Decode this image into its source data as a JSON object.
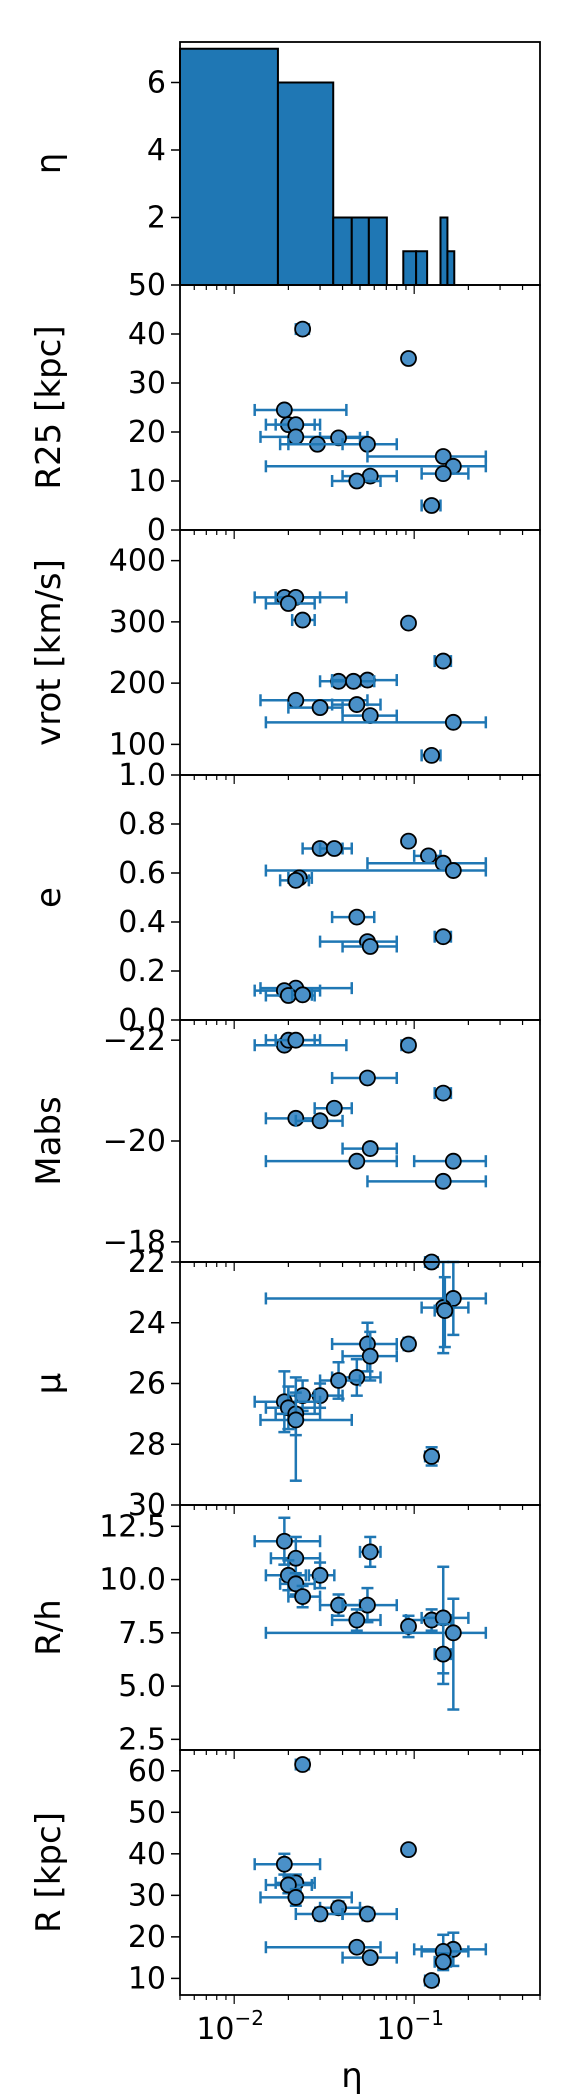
{
  "chart_data": [
    {
      "type": "bar",
      "panel": "histogram",
      "ylabel": "η",
      "ylim": [
        0,
        7.2
      ],
      "xscale": "log",
      "xlim": [
        0.005,
        0.5
      ],
      "bins": [
        {
          "x0": 0.005,
          "x1": 0.0175,
          "count": 7
        },
        {
          "x0": 0.0175,
          "x1": 0.0355,
          "count": 6
        },
        {
          "x0": 0.0355,
          "x1": 0.045,
          "count": 2
        },
        {
          "x0": 0.045,
          "x1": 0.056,
          "count": 2
        },
        {
          "x0": 0.056,
          "x1": 0.0705,
          "count": 2
        },
        {
          "x0": 0.087,
          "x1": 0.1025,
          "count": 1
        },
        {
          "x0": 0.1025,
          "x1": 0.118,
          "count": 1
        },
        {
          "x0": 0.14,
          "x1": 0.153,
          "count": 2
        },
        {
          "x0": 0.153,
          "x1": 0.167,
          "count": 1
        }
      ],
      "yticks": [
        2,
        4,
        6
      ],
      "ytick_labels": [
        "2",
        "4",
        "6"
      ],
      "color": "#1f77b4"
    },
    {
      "type": "scatter",
      "ylabel": "R25 [kpc]",
      "ylim": [
        0,
        50
      ],
      "yticks": [
        0,
        10,
        20,
        30,
        40,
        50
      ],
      "ytick_labels": [
        "0",
        "10",
        "20",
        "30",
        "40",
        "50"
      ],
      "points": [
        {
          "x": 0.024,
          "y": 41,
          "xlo": 0.022,
          "xhi": 0.026
        },
        {
          "x": 0.093,
          "y": 35,
          "xlo": 0.088,
          "xhi": 0.098
        },
        {
          "x": 0.019,
          "y": 24.5,
          "xlo": 0.013,
          "xhi": 0.042
        },
        {
          "x": 0.02,
          "y": 21.5,
          "xlo": 0.015,
          "xhi": 0.03
        },
        {
          "x": 0.022,
          "y": 21.5,
          "xlo": 0.017,
          "xhi": 0.028
        },
        {
          "x": 0.022,
          "y": 19,
          "xlo": 0.014,
          "xhi": 0.055
        },
        {
          "x": 0.038,
          "y": 18.8,
          "xlo": 0.03,
          "xhi": 0.05
        },
        {
          "x": 0.029,
          "y": 17.5,
          "xlo": 0.02,
          "xhi": 0.04
        },
        {
          "x": 0.055,
          "y": 17.5,
          "xlo": 0.018,
          "xhi": 0.08
        },
        {
          "x": 0.145,
          "y": 15,
          "xlo": 0.055,
          "xhi": 0.25
        },
        {
          "x": 0.165,
          "y": 13,
          "xlo": 0.015,
          "xhi": 0.25
        },
        {
          "x": 0.145,
          "y": 11.5,
          "xlo": 0.11,
          "xhi": 0.2
        },
        {
          "x": 0.057,
          "y": 11,
          "xlo": 0.04,
          "xhi": 0.08
        },
        {
          "x": 0.048,
          "y": 10,
          "xlo": 0.035,
          "xhi": 0.065
        },
        {
          "x": 0.125,
          "y": 5,
          "xlo": 0.11,
          "xhi": 0.14
        }
      ]
    },
    {
      "type": "scatter",
      "ylabel": "vrot [km/s]",
      "ylim": [
        50,
        450
      ],
      "yticks": [
        100,
        200,
        300,
        400
      ],
      "ytick_labels": [
        "100",
        "200",
        "300",
        "400"
      ],
      "points": [
        {
          "x": 0.019,
          "y": 340,
          "xlo": 0.013,
          "xhi": 0.042
        },
        {
          "x": 0.022,
          "y": 340,
          "xlo": 0.017,
          "xhi": 0.03
        },
        {
          "x": 0.02,
          "y": 330,
          "xlo": 0.015,
          "xhi": 0.028
        },
        {
          "x": 0.024,
          "y": 303,
          "xlo": 0.021,
          "xhi": 0.028
        },
        {
          "x": 0.093,
          "y": 298,
          "xlo": 0.088,
          "xhi": 0.098
        },
        {
          "x": 0.145,
          "y": 236,
          "xlo": 0.13,
          "xhi": 0.16
        },
        {
          "x": 0.038,
          "y": 203,
          "xlo": 0.03,
          "xhi": 0.05
        },
        {
          "x": 0.055,
          "y": 205,
          "xlo": 0.035,
          "xhi": 0.08
        },
        {
          "x": 0.046,
          "y": 203,
          "xlo": 0.035,
          "xhi": 0.06
        },
        {
          "x": 0.022,
          "y": 172,
          "xlo": 0.014,
          "xhi": 0.055
        },
        {
          "x": 0.048,
          "y": 165,
          "xlo": 0.035,
          "xhi": 0.065
        },
        {
          "x": 0.03,
          "y": 160,
          "xlo": 0.02,
          "xhi": 0.04
        },
        {
          "x": 0.057,
          "y": 147,
          "xlo": 0.04,
          "xhi": 0.08
        },
        {
          "x": 0.165,
          "y": 136,
          "xlo": 0.015,
          "xhi": 0.25
        },
        {
          "x": 0.125,
          "y": 82,
          "xlo": 0.11,
          "xhi": 0.14
        }
      ]
    },
    {
      "type": "scatter",
      "ylabel": "e",
      "ylim": [
        0,
        1.0
      ],
      "yticks": [
        0.0,
        0.2,
        0.4,
        0.6,
        0.8,
        1.0
      ],
      "ytick_labels": [
        "0.0",
        "0.2",
        "0.4",
        "0.6",
        "0.8",
        "1.0"
      ],
      "points": [
        {
          "x": 0.093,
          "y": 0.73,
          "xlo": 0.088,
          "xhi": 0.098
        },
        {
          "x": 0.03,
          "y": 0.7,
          "xlo": 0.024,
          "xhi": 0.04
        },
        {
          "x": 0.036,
          "y": 0.7,
          "xlo": 0.03,
          "xhi": 0.045
        },
        {
          "x": 0.12,
          "y": 0.67,
          "xlo": 0.1,
          "xhi": 0.14
        },
        {
          "x": 0.145,
          "y": 0.64,
          "xlo": 0.055,
          "xhi": 0.25
        },
        {
          "x": 0.165,
          "y": 0.61,
          "xlo": 0.015,
          "xhi": 0.25
        },
        {
          "x": 0.023,
          "y": 0.58,
          "xlo": 0.02,
          "xhi": 0.027
        },
        {
          "x": 0.022,
          "y": 0.57,
          "xlo": 0.018,
          "xhi": 0.026
        },
        {
          "x": 0.048,
          "y": 0.42,
          "xlo": 0.035,
          "xhi": 0.06
        },
        {
          "x": 0.145,
          "y": 0.34,
          "xlo": 0.13,
          "xhi": 0.16
        },
        {
          "x": 0.055,
          "y": 0.32,
          "xlo": 0.03,
          "xhi": 0.08
        },
        {
          "x": 0.057,
          "y": 0.3,
          "xlo": 0.04,
          "xhi": 0.08
        },
        {
          "x": 0.022,
          "y": 0.13,
          "xlo": 0.014,
          "xhi": 0.045
        },
        {
          "x": 0.019,
          "y": 0.12,
          "xlo": 0.013,
          "xhi": 0.03
        },
        {
          "x": 0.02,
          "y": 0.1,
          "xlo": 0.015,
          "xhi": 0.028
        }
      ]
    },
    {
      "type": "scatter",
      "ylabel": "Mabs",
      "ylim": [
        -22.4,
        -17.6
      ],
      "inverted": true,
      "yticks": [
        -18,
        -20,
        -22
      ],
      "ytick_labels": [
        "−18",
        "−20",
        "−22"
      ],
      "points": [
        {
          "x": 0.125,
          "y": -17.6,
          "xlo": 0.115,
          "xhi": 0.135
        },
        {
          "x": 0.145,
          "y": -19.2,
          "xlo": 0.055,
          "xhi": 0.25
        },
        {
          "x": 0.048,
          "y": -19.6,
          "xlo": 0.015,
          "xhi": 0.08
        },
        {
          "x": 0.165,
          "y": -19.6,
          "xlo": 0.1,
          "xhi": 0.25
        },
        {
          "x": 0.057,
          "y": -19.85,
          "xlo": 0.04,
          "xhi": 0.08
        },
        {
          "x": 0.022,
          "y": -20.45,
          "xlo": 0.015,
          "xhi": 0.03
        },
        {
          "x": 0.03,
          "y": -20.4,
          "xlo": 0.022,
          "xhi": 0.04
        },
        {
          "x": 0.036,
          "y": -20.65,
          "xlo": 0.028,
          "xhi": 0.045
        },
        {
          "x": 0.145,
          "y": -20.95,
          "xlo": 0.13,
          "xhi": 0.16
        },
        {
          "x": 0.055,
          "y": -21.25,
          "xlo": 0.035,
          "xhi": 0.08
        },
        {
          "x": 0.093,
          "y": -21.9,
          "xlo": 0.085,
          "xhi": 0.1
        },
        {
          "x": 0.019,
          "y": -21.9,
          "xlo": 0.013,
          "xhi": 0.042
        },
        {
          "x": 0.02,
          "y": -22.0,
          "xlo": 0.015,
          "xhi": 0.028
        },
        {
          "x": 0.022,
          "y": -22.0,
          "xlo": 0.017,
          "xhi": 0.03
        },
        {
          "x": 0.024,
          "y": -22.9,
          "xlo": 0.021,
          "xhi": 0.027
        }
      ]
    },
    {
      "type": "scatter",
      "ylabel": "μ",
      "ylim": [
        22,
        30
      ],
      "inverted": true,
      "yticks": [
        22,
        24,
        26,
        28,
        30
      ],
      "ytick_labels": [
        "22",
        "24",
        "26",
        "28",
        "30"
      ],
      "points": [
        {
          "x": 0.165,
          "y": 23.2,
          "xlo": 0.015,
          "xhi": 0.25,
          "ylo": 22.0,
          "yhi": 24.4
        },
        {
          "x": 0.145,
          "y": 23.5,
          "xlo": 0.11,
          "xhi": 0.2,
          "ylo": 22.0,
          "yhi": 25.0
        },
        {
          "x": 0.148,
          "y": 23.6,
          "xlo": 0.13,
          "xhi": 0.16,
          "ylo": 22.5,
          "yhi": 24.8
        },
        {
          "x": 0.093,
          "y": 24.7,
          "xlo": 0.088,
          "xhi": 0.098,
          "ylo": 24.5,
          "yhi": 24.9
        },
        {
          "x": 0.055,
          "y": 24.7,
          "xlo": 0.035,
          "xhi": 0.08,
          "ylo": 24.0,
          "yhi": 25.6
        },
        {
          "x": 0.057,
          "y": 25.1,
          "xlo": 0.04,
          "xhi": 0.08,
          "ylo": 24.3,
          "yhi": 25.9
        },
        {
          "x": 0.048,
          "y": 25.8,
          "xlo": 0.035,
          "xhi": 0.065,
          "ylo": 25.2,
          "yhi": 26.4
        },
        {
          "x": 0.038,
          "y": 25.9,
          "xlo": 0.03,
          "xhi": 0.05,
          "ylo": 25.3,
          "yhi": 26.5
        },
        {
          "x": 0.03,
          "y": 26.4,
          "xlo": 0.022,
          "xhi": 0.04,
          "ylo": 26.0,
          "yhi": 26.8
        },
        {
          "x": 0.024,
          "y": 26.4,
          "xlo": 0.02,
          "xhi": 0.028,
          "ylo": 25.9,
          "yhi": 26.9
        },
        {
          "x": 0.019,
          "y": 26.6,
          "xlo": 0.013,
          "xhi": 0.03,
          "ylo": 25.6,
          "yhi": 27.6
        },
        {
          "x": 0.02,
          "y": 26.8,
          "xlo": 0.015,
          "xhi": 0.028,
          "ylo": 26.1,
          "yhi": 27.5
        },
        {
          "x": 0.022,
          "y": 27.0,
          "xlo": 0.017,
          "xhi": 0.03,
          "ylo": 26.3,
          "yhi": 27.7
        },
        {
          "x": 0.022,
          "y": 27.2,
          "xlo": 0.014,
          "xhi": 0.045,
          "ylo": 25.8,
          "yhi": 29.2
        },
        {
          "x": 0.125,
          "y": 28.4,
          "xlo": 0.115,
          "xhi": 0.135,
          "ylo": 28.1,
          "yhi": 28.7
        }
      ]
    },
    {
      "type": "scatter",
      "ylabel": "R/h",
      "ylim": [
        2,
        13.5
      ],
      "yticks": [
        2.5,
        5.0,
        7.5,
        10.0,
        12.5
      ],
      "ytick_labels": [
        "2.5",
        "5.0",
        "7.5",
        "10.0",
        "12.5"
      ],
      "points": [
        {
          "x": 0.019,
          "y": 11.8,
          "xlo": 0.013,
          "xhi": 0.03,
          "ylo": 10.7,
          "yhi": 12.9
        },
        {
          "x": 0.057,
          "y": 11.3,
          "xlo": 0.05,
          "xhi": 0.065,
          "ylo": 10.6,
          "yhi": 12.0
        },
        {
          "x": 0.022,
          "y": 11.0,
          "xlo": 0.016,
          "xhi": 0.03,
          "ylo": 10.0,
          "yhi": 12.0
        },
        {
          "x": 0.02,
          "y": 10.2,
          "xlo": 0.015,
          "xhi": 0.025,
          "ylo": 9.5,
          "yhi": 10.9
        },
        {
          "x": 0.03,
          "y": 10.2,
          "xlo": 0.026,
          "xhi": 0.036,
          "ylo": 9.6,
          "yhi": 10.8
        },
        {
          "x": 0.022,
          "y": 9.8,
          "xlo": 0.018,
          "xhi": 0.028,
          "ylo": 9.3,
          "yhi": 10.3
        },
        {
          "x": 0.024,
          "y": 9.2,
          "xlo": 0.02,
          "xhi": 0.03,
          "ylo": 8.7,
          "yhi": 9.7
        },
        {
          "x": 0.038,
          "y": 8.8,
          "xlo": 0.03,
          "xhi": 0.05,
          "ylo": 8.3,
          "yhi": 9.3
        },
        {
          "x": 0.055,
          "y": 8.8,
          "xlo": 0.04,
          "xhi": 0.08,
          "ylo": 8.0,
          "yhi": 9.6
        },
        {
          "x": 0.048,
          "y": 8.1,
          "xlo": 0.035,
          "xhi": 0.065,
          "ylo": 7.6,
          "yhi": 8.6
        },
        {
          "x": 0.125,
          "y": 8.1,
          "xlo": 0.09,
          "xhi": 0.16,
          "ylo": 7.6,
          "yhi": 8.6
        },
        {
          "x": 0.093,
          "y": 7.8,
          "xlo": 0.088,
          "xhi": 0.098,
          "ylo": 7.3,
          "yhi": 8.3
        },
        {
          "x": 0.145,
          "y": 8.2,
          "xlo": 0.11,
          "xhi": 0.2,
          "ylo": 5.6,
          "yhi": 10.6
        },
        {
          "x": 0.165,
          "y": 7.5,
          "xlo": 0.015,
          "xhi": 0.25,
          "ylo": 3.9,
          "yhi": 9.1
        },
        {
          "x": 0.145,
          "y": 6.5,
          "xlo": 0.13,
          "xhi": 0.16,
          "ylo": 5.1,
          "yhi": 7.9
        }
      ]
    },
    {
      "type": "scatter",
      "ylabel": "R [kpc]",
      "xlabel": "η",
      "xscale": "log",
      "xlim": [
        0.005,
        0.5
      ],
      "ylim": [
        6,
        65
      ],
      "yticks": [
        10,
        20,
        30,
        40,
        50,
        60
      ],
      "ytick_labels": [
        "10",
        "20",
        "30",
        "40",
        "50",
        "60"
      ],
      "xticks": [
        0.01,
        0.1
      ],
      "xtick_labels": [
        "10",
        "10"
      ],
      "xtick_exponents": [
        "−2",
        "−1"
      ],
      "points": [
        {
          "x": 0.024,
          "y": 61.5,
          "xlo": 0.022,
          "xhi": 0.026,
          "ylo": 60.5,
          "yhi": 62.5
        },
        {
          "x": 0.093,
          "y": 41.0,
          "xlo": 0.088,
          "xhi": 0.098,
          "ylo": 40.2,
          "yhi": 41.8
        },
        {
          "x": 0.019,
          "y": 37.5,
          "xlo": 0.013,
          "xhi": 0.03,
          "ylo": 35.0,
          "yhi": 40.0
        },
        {
          "x": 0.022,
          "y": 33.0,
          "xlo": 0.017,
          "xhi": 0.028,
          "ylo": 31.0,
          "yhi": 35.0
        },
        {
          "x": 0.02,
          "y": 32.5,
          "xlo": 0.015,
          "xhi": 0.027,
          "ylo": 30.5,
          "yhi": 34.5
        },
        {
          "x": 0.022,
          "y": 29.5,
          "xlo": 0.014,
          "xhi": 0.045,
          "ylo": 27.5,
          "yhi": 31.5
        },
        {
          "x": 0.038,
          "y": 27.0,
          "xlo": 0.03,
          "xhi": 0.05,
          "ylo": 25.5,
          "yhi": 28.5
        },
        {
          "x": 0.03,
          "y": 25.5,
          "xlo": 0.022,
          "xhi": 0.04,
          "ylo": 24.0,
          "yhi": 27.0
        },
        {
          "x": 0.055,
          "y": 25.5,
          "xlo": 0.04,
          "xhi": 0.08,
          "ylo": 24.0,
          "yhi": 27.0
        },
        {
          "x": 0.048,
          "y": 17.5,
          "xlo": 0.015,
          "xhi": 0.065,
          "ylo": 16.5,
          "yhi": 18.5
        },
        {
          "x": 0.165,
          "y": 17.0,
          "xlo": 0.1,
          "xhi": 0.25,
          "ylo": 13.0,
          "yhi": 21.0
        },
        {
          "x": 0.145,
          "y": 16.5,
          "xlo": 0.11,
          "xhi": 0.2,
          "ylo": 12.5,
          "yhi": 20.5
        },
        {
          "x": 0.057,
          "y": 15.0,
          "xlo": 0.04,
          "xhi": 0.08,
          "ylo": 14.0,
          "yhi": 16.0
        },
        {
          "x": 0.145,
          "y": 14.0,
          "xlo": 0.13,
          "xhi": 0.16,
          "ylo": 12.0,
          "yhi": 16.0
        },
        {
          "x": 0.125,
          "y": 9.5,
          "xlo": 0.115,
          "xhi": 0.135,
          "ylo": 8.8,
          "yhi": 10.2
        }
      ]
    }
  ],
  "colors": {
    "marker_fill": "#4a90c8",
    "marker_edge": "#000000",
    "errorbar": "#1f77b4",
    "bar": "#1f77b4"
  }
}
